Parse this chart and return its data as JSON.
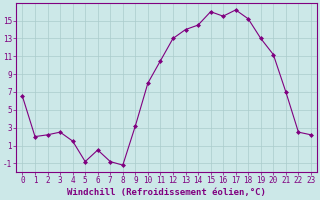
{
  "x": [
    0,
    1,
    2,
    3,
    4,
    5,
    6,
    7,
    8,
    9,
    10,
    11,
    12,
    13,
    14,
    15,
    16,
    17,
    18,
    19,
    20,
    21,
    22,
    23
  ],
  "y": [
    6.5,
    2.0,
    2.2,
    2.5,
    1.5,
    -0.8,
    0.5,
    -0.8,
    -1.2,
    3.2,
    8.0,
    10.5,
    13.0,
    14.0,
    14.5,
    16.0,
    15.5,
    16.2,
    15.2,
    13.0,
    11.2,
    7.0,
    2.5,
    2.2
  ],
  "line_color": "#800080",
  "marker": "D",
  "marker_size": 2.0,
  "bg_color": "#cce8e8",
  "grid_color": "#aacccc",
  "xlabel": "Windchill (Refroidissement éolien,°C)",
  "xlim_min": -0.5,
  "xlim_max": 23.5,
  "ylim_min": -2,
  "ylim_max": 17,
  "yticks": [
    -1,
    1,
    3,
    5,
    7,
    9,
    11,
    13,
    15
  ],
  "xticks": [
    0,
    1,
    2,
    3,
    4,
    5,
    6,
    7,
    8,
    9,
    10,
    11,
    12,
    13,
    14,
    15,
    16,
    17,
    18,
    19,
    20,
    21,
    22,
    23
  ],
  "tick_color": "#800080",
  "label_color": "#800080",
  "spine_color": "#800080",
  "xlabel_fontsize": 6.5,
  "tick_fontsize": 5.5
}
